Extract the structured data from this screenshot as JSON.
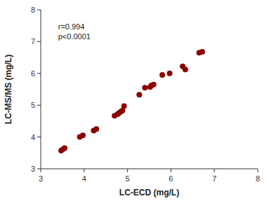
{
  "chart_data": {
    "type": "scatter",
    "x": [
      3.47,
      3.52,
      3.55,
      3.9,
      3.97,
      4.22,
      4.28,
      4.7,
      4.77,
      4.8,
      4.85,
      4.88,
      4.92,
      5.27,
      5.4,
      5.52,
      5.55,
      5.6,
      5.8,
      5.97,
      6.27,
      6.33,
      6.65,
      6.72
    ],
    "y": [
      3.57,
      3.62,
      3.65,
      4.0,
      4.05,
      4.2,
      4.25,
      4.67,
      4.72,
      4.75,
      4.8,
      4.83,
      4.97,
      5.33,
      5.55,
      5.57,
      5.62,
      5.65,
      5.95,
      6.0,
      6.22,
      6.12,
      6.65,
      6.68
    ],
    "color": "#8B0000",
    "marker": "circle",
    "annotation": "r=0.994\np<0.0001",
    "xlabel": "LC-ECD (mg/L)",
    "ylabel": "LC-MS/MS (mg/L)",
    "xlim": [
      3.0,
      8.0
    ],
    "ylim": [
      3.0,
      8.0
    ],
    "xticks": [
      3,
      4,
      5,
      6,
      7,
      8
    ],
    "yticks": [
      3,
      4,
      5,
      6,
      7,
      8
    ],
    "grid": false
  }
}
